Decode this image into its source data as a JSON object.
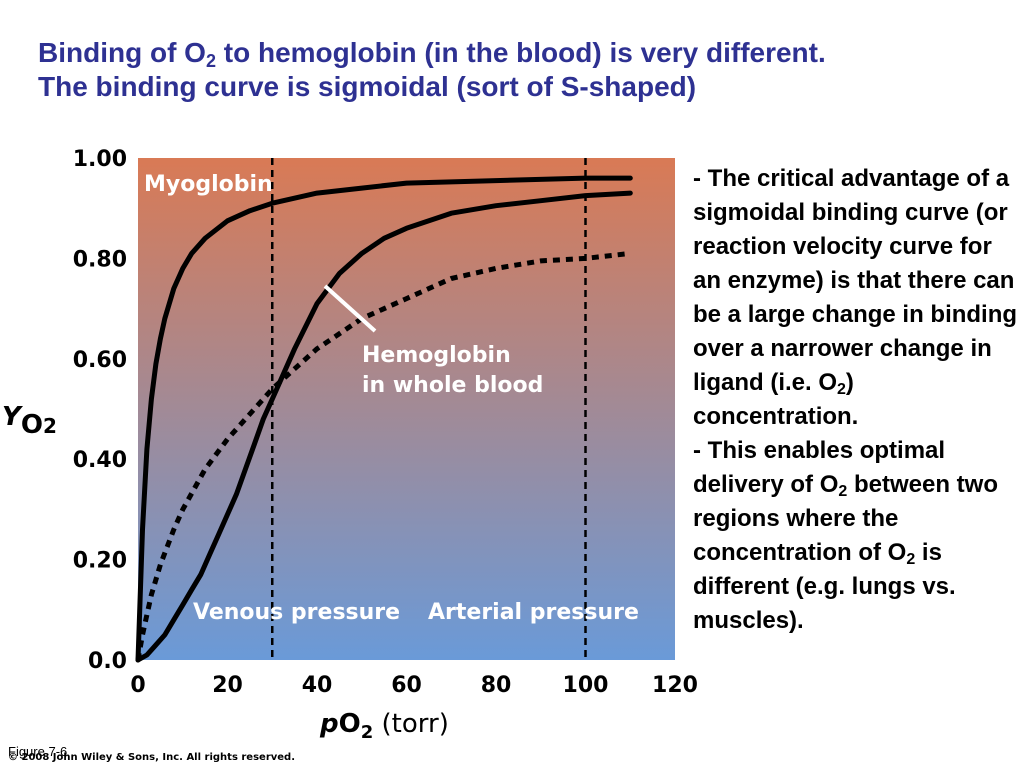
{
  "title": {
    "line1_a": "Binding of O",
    "line1_sub": "2",
    "line1_b": " to hemoglobin (in the blood) is very different.",
    "line2": "The binding curve is sigmoidal (sort of S-shaped)"
  },
  "side_text": {
    "p1_a": "- The critical advantage of a sigmoidal binding curve (or reaction velocity curve for an enzyme) is that there can be a large change in binding over a narrower change in ligand (i.e. O",
    "p1_sub": "2",
    "p1_b": ") concentration.",
    "p2_a": "- This enables optimal delivery of O",
    "p2_sub1": "2",
    "p2_b": " between two regions where the concentration of O",
    "p2_sub2": "2",
    "p2_c": " is different (e.g. lungs vs. muscles)."
  },
  "figure_label": "Figure 7-6",
  "copyright": "© 2008 John Wiley & Sons, Inc. All rights reserved.",
  "colors": {
    "title": "#2e3192",
    "plot_top": "#d97a55",
    "plot_bottom": "#6a9ad8"
  },
  "chart_data": {
    "type": "line",
    "xlabel_main": "p",
    "xlabel_o": "O",
    "xlabel_sub": "2",
    "xlabel_unit": " (torr)",
    "ylabel_main": "Y",
    "ylabel_sub": "O",
    "ylabel_sub2": "2",
    "xlim": [
      0,
      120
    ],
    "ylim": [
      0,
      1.0
    ],
    "xticks": [
      {
        "v": 0,
        "label": "0"
      },
      {
        "v": 20,
        "label": "20"
      },
      {
        "v": 40,
        "label": "40"
      },
      {
        "v": 60,
        "label": "60"
      },
      {
        "v": 80,
        "label": "80"
      },
      {
        "v": 100,
        "label": "100"
      },
      {
        "v": 120,
        "label": "120"
      }
    ],
    "yticks": [
      {
        "v": 0.0,
        "label": "0.0"
      },
      {
        "v": 0.2,
        "label": "0.20"
      },
      {
        "v": 0.4,
        "label": "0.40"
      },
      {
        "v": 0.6,
        "label": "0.60"
      },
      {
        "v": 0.8,
        "label": "0.80"
      },
      {
        "v": 1.0,
        "label": "1.00"
      }
    ],
    "vlines": [
      {
        "x": 30,
        "label": "Venous pressure"
      },
      {
        "x": 100,
        "label": "Arterial pressure"
      }
    ],
    "series": [
      {
        "name": "Myoglobin",
        "style": "solid",
        "x": [
          0,
          1,
          2,
          3,
          4,
          5,
          6,
          8,
          10,
          12,
          15,
          20,
          25,
          30,
          40,
          50,
          60,
          80,
          100,
          110
        ],
        "y": [
          0.0,
          0.26,
          0.42,
          0.52,
          0.59,
          0.64,
          0.68,
          0.74,
          0.78,
          0.81,
          0.84,
          0.875,
          0.895,
          0.91,
          0.93,
          0.94,
          0.95,
          0.955,
          0.96,
          0.96
        ]
      },
      {
        "name": "",
        "style": "solid",
        "x": [
          0,
          2,
          4,
          6,
          8,
          10,
          12,
          14,
          16,
          18,
          20,
          22,
          24,
          26,
          28,
          30,
          35,
          40,
          45,
          50,
          55,
          60,
          70,
          80,
          90,
          100,
          110
        ],
        "y": [
          0.0,
          0.01,
          0.03,
          0.05,
          0.08,
          0.11,
          0.14,
          0.17,
          0.21,
          0.25,
          0.29,
          0.33,
          0.38,
          0.43,
          0.48,
          0.52,
          0.62,
          0.71,
          0.77,
          0.81,
          0.84,
          0.86,
          0.89,
          0.905,
          0.915,
          0.925,
          0.93
        ]
      },
      {
        "name": "Hemoglobin in whole blood",
        "style": "dashed",
        "x": [
          0,
          1,
          2,
          3,
          5,
          8,
          10,
          15,
          20,
          25,
          30,
          35,
          40,
          50,
          60,
          70,
          80,
          90,
          100,
          110
        ],
        "y": [
          0.0,
          0.05,
          0.09,
          0.13,
          0.19,
          0.26,
          0.3,
          0.38,
          0.44,
          0.49,
          0.54,
          0.58,
          0.62,
          0.68,
          0.72,
          0.76,
          0.78,
          0.795,
          0.8,
          0.81
        ]
      }
    ],
    "annotations": [
      {
        "label": "Myoglobin"
      },
      {
        "label_line1": "Hemoglobin",
        "label_line2": "in whole blood"
      }
    ]
  }
}
